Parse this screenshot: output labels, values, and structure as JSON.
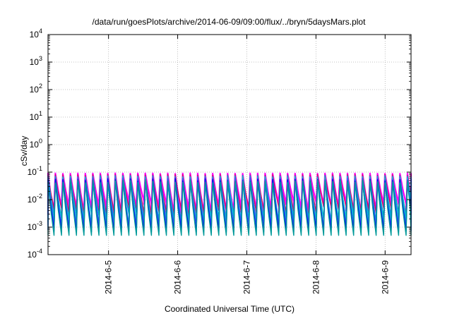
{
  "chart_data": {
    "type": "line",
    "title": "/data/run/goesPlots/archive/2014-06-09/09:00/flux/../bryn/5daysMars.plot",
    "xlabel": "Coordinated Universal Time (UTC)",
    "ylabel": "cSv/day",
    "y_scale": "log",
    "ylim": [
      0.0001,
      10000
    ],
    "y_ticks": [
      {
        "value": 0.0001,
        "exp": "-4"
      },
      {
        "value": 0.001,
        "exp": "-3"
      },
      {
        "value": 0.01,
        "exp": "-2"
      },
      {
        "value": 0.1,
        "exp": "-1"
      },
      {
        "value": 1,
        "exp": "0"
      },
      {
        "value": 10,
        "exp": "1"
      },
      {
        "value": 100,
        "exp": "2"
      },
      {
        "value": 1000,
        "exp": "3"
      },
      {
        "value": 10000,
        "exp": "4"
      }
    ],
    "y_tick_base": "10",
    "xlim": [
      "2014-06-04T03:00",
      "2014-06-09T09:00"
    ],
    "x_ticks": [
      {
        "value": "2014-06-05T00:00",
        "label": "2014-6-5"
      },
      {
        "value": "2014-06-06T00:00",
        "label": "2014-6-6"
      },
      {
        "value": "2014-06-07T00:00",
        "label": "2014-6-7"
      },
      {
        "value": "2014-06-08T00:00",
        "label": "2014-6-8"
      },
      {
        "value": "2014-06-09T00:00",
        "label": "2014-6-9"
      }
    ],
    "grid": true,
    "legend": "none",
    "oscillation": {
      "period_hours": 2.6,
      "peak_range": [
        0.04,
        0.1
      ],
      "trough_range": [
        0.0005,
        0.009
      ]
    },
    "series_colors": [
      "#ff00ff",
      "#dd0066",
      "#00aacc",
      "#00cccc",
      "#3355ff",
      "#0000ee",
      "#009999"
    ]
  }
}
